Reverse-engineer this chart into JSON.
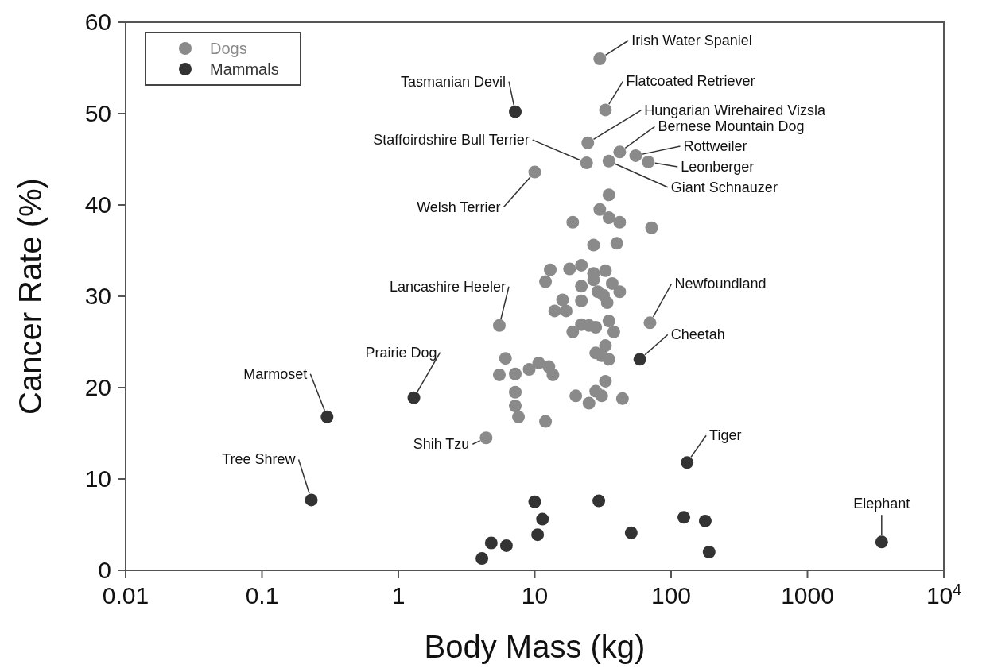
{
  "chart_data": {
    "type": "scatter",
    "xlabel": "Body Mass (kg)",
    "ylabel": "Cancer Rate (%)",
    "log": "x",
    "xlim": [
      0.01,
      10000
    ],
    "xticks": [
      0.01,
      0.1,
      1,
      10,
      100,
      1000,
      {
        "value": 10000,
        "label": "10$^{4}$"
      }
    ],
    "ylim": [
      0,
      60
    ],
    "yticks": [
      0,
      10,
      20,
      30,
      40,
      50,
      60
    ],
    "grid": false,
    "legend": "top left",
    "marker": "circle",
    "series": [
      {
        "name": "Dogs",
        "color": "#8a8a8a",
        "x": [
          30,
          33,
          24.5,
          42,
          55,
          68,
          24,
          35,
          10,
          35,
          30,
          35,
          42,
          19,
          72,
          27,
          40,
          13,
          22,
          18,
          33,
          27,
          12,
          27,
          22,
          37,
          42,
          29,
          32,
          34,
          22,
          16,
          14,
          17,
          35,
          70,
          5.5,
          19,
          22,
          25,
          28,
          38,
          33,
          28,
          35,
          31,
          6.1,
          5.5,
          7.2,
          9.1,
          10.7,
          12.7,
          13.6,
          33,
          7.2,
          7.2,
          7.6,
          12,
          20,
          25,
          28,
          31,
          44,
          4.4
        ],
        "values": [
          56,
          50.4,
          46.8,
          45.8,
          45.4,
          44.7,
          44.6,
          44.8,
          43.6,
          41.1,
          39.5,
          38.6,
          38.1,
          38.1,
          37.5,
          35.6,
          35.8,
          32.9,
          33.4,
          33,
          32.8,
          32.5,
          31.6,
          31.8,
          31.1,
          31.4,
          30.5,
          30.5,
          30.1,
          29.3,
          29.5,
          29.6,
          28.4,
          28.4,
          27.3,
          27.1,
          26.8,
          26.1,
          26.9,
          26.8,
          26.6,
          26.1,
          24.6,
          23.8,
          23.1,
          23.5,
          23.2,
          21.4,
          21.5,
          22,
          22.7,
          22.3,
          21.4,
          20.7,
          19.5,
          18,
          16.8,
          16.3,
          19.1,
          18.3,
          19.6,
          19.1,
          18.8,
          14.5
        ]
      },
      {
        "name": "Mammals",
        "color": "#333333",
        "x": [
          7.2,
          59,
          0.3,
          0.23,
          1.3,
          131,
          3500,
          4.1,
          4.8,
          6.2,
          10,
          11.4,
          10.5,
          29.5,
          51,
          124,
          178,
          190
        ],
        "values": [
          50.2,
          23.1,
          16.8,
          7.7,
          18.9,
          11.8,
          3.1,
          1.3,
          3,
          2.7,
          7.5,
          5.6,
          3.9,
          7.6,
          4.1,
          5.8,
          5.4,
          2
        ]
      }
    ],
    "annotations": [
      {
        "text": "Irish Water Spaniel",
        "x": 30,
        "y": 56
      },
      {
        "text": "Tasmanian Devil",
        "x": 7.2,
        "y": 50.2
      },
      {
        "text": "Flatcoated Retriever",
        "x": 33,
        "y": 50.4
      },
      {
        "text": "Hungarian Wirehaired Vizsla",
        "x": 24.5,
        "y": 46.8
      },
      {
        "text": "Bernese Mountain Dog",
        "x": 42,
        "y": 45.8
      },
      {
        "text": "Staffoirdshire Bull Terrier",
        "x": 24,
        "y": 44.6
      },
      {
        "text": "Rottweiler",
        "x": 55,
        "y": 45.4
      },
      {
        "text": "Leonberger",
        "x": 68,
        "y": 44.7
      },
      {
        "text": "Giant Schnauzer",
        "x": 35,
        "y": 44.8
      },
      {
        "text": "Welsh Terrier",
        "x": 10,
        "y": 43.6
      },
      {
        "text": "Lancashire Heeler",
        "x": 5.5,
        "y": 26.8
      },
      {
        "text": "Newfoundland",
        "x": 70,
        "y": 27.1
      },
      {
        "text": "Cheetah",
        "x": 59,
        "y": 23.1
      },
      {
        "text": "Prairie Dog",
        "x": 1.3,
        "y": 18.9
      },
      {
        "text": "Marmoset",
        "x": 0.3,
        "y": 16.8
      },
      {
        "text": "Shih Tzu",
        "x": 4.4,
        "y": 14.5
      },
      {
        "text": "Tiger",
        "x": 131,
        "y": 11.8
      },
      {
        "text": "Tree Shrew",
        "x": 0.23,
        "y": 7.7
      },
      {
        "text": "Elephant",
        "x": 3500,
        "y": 3.1
      }
    ]
  }
}
